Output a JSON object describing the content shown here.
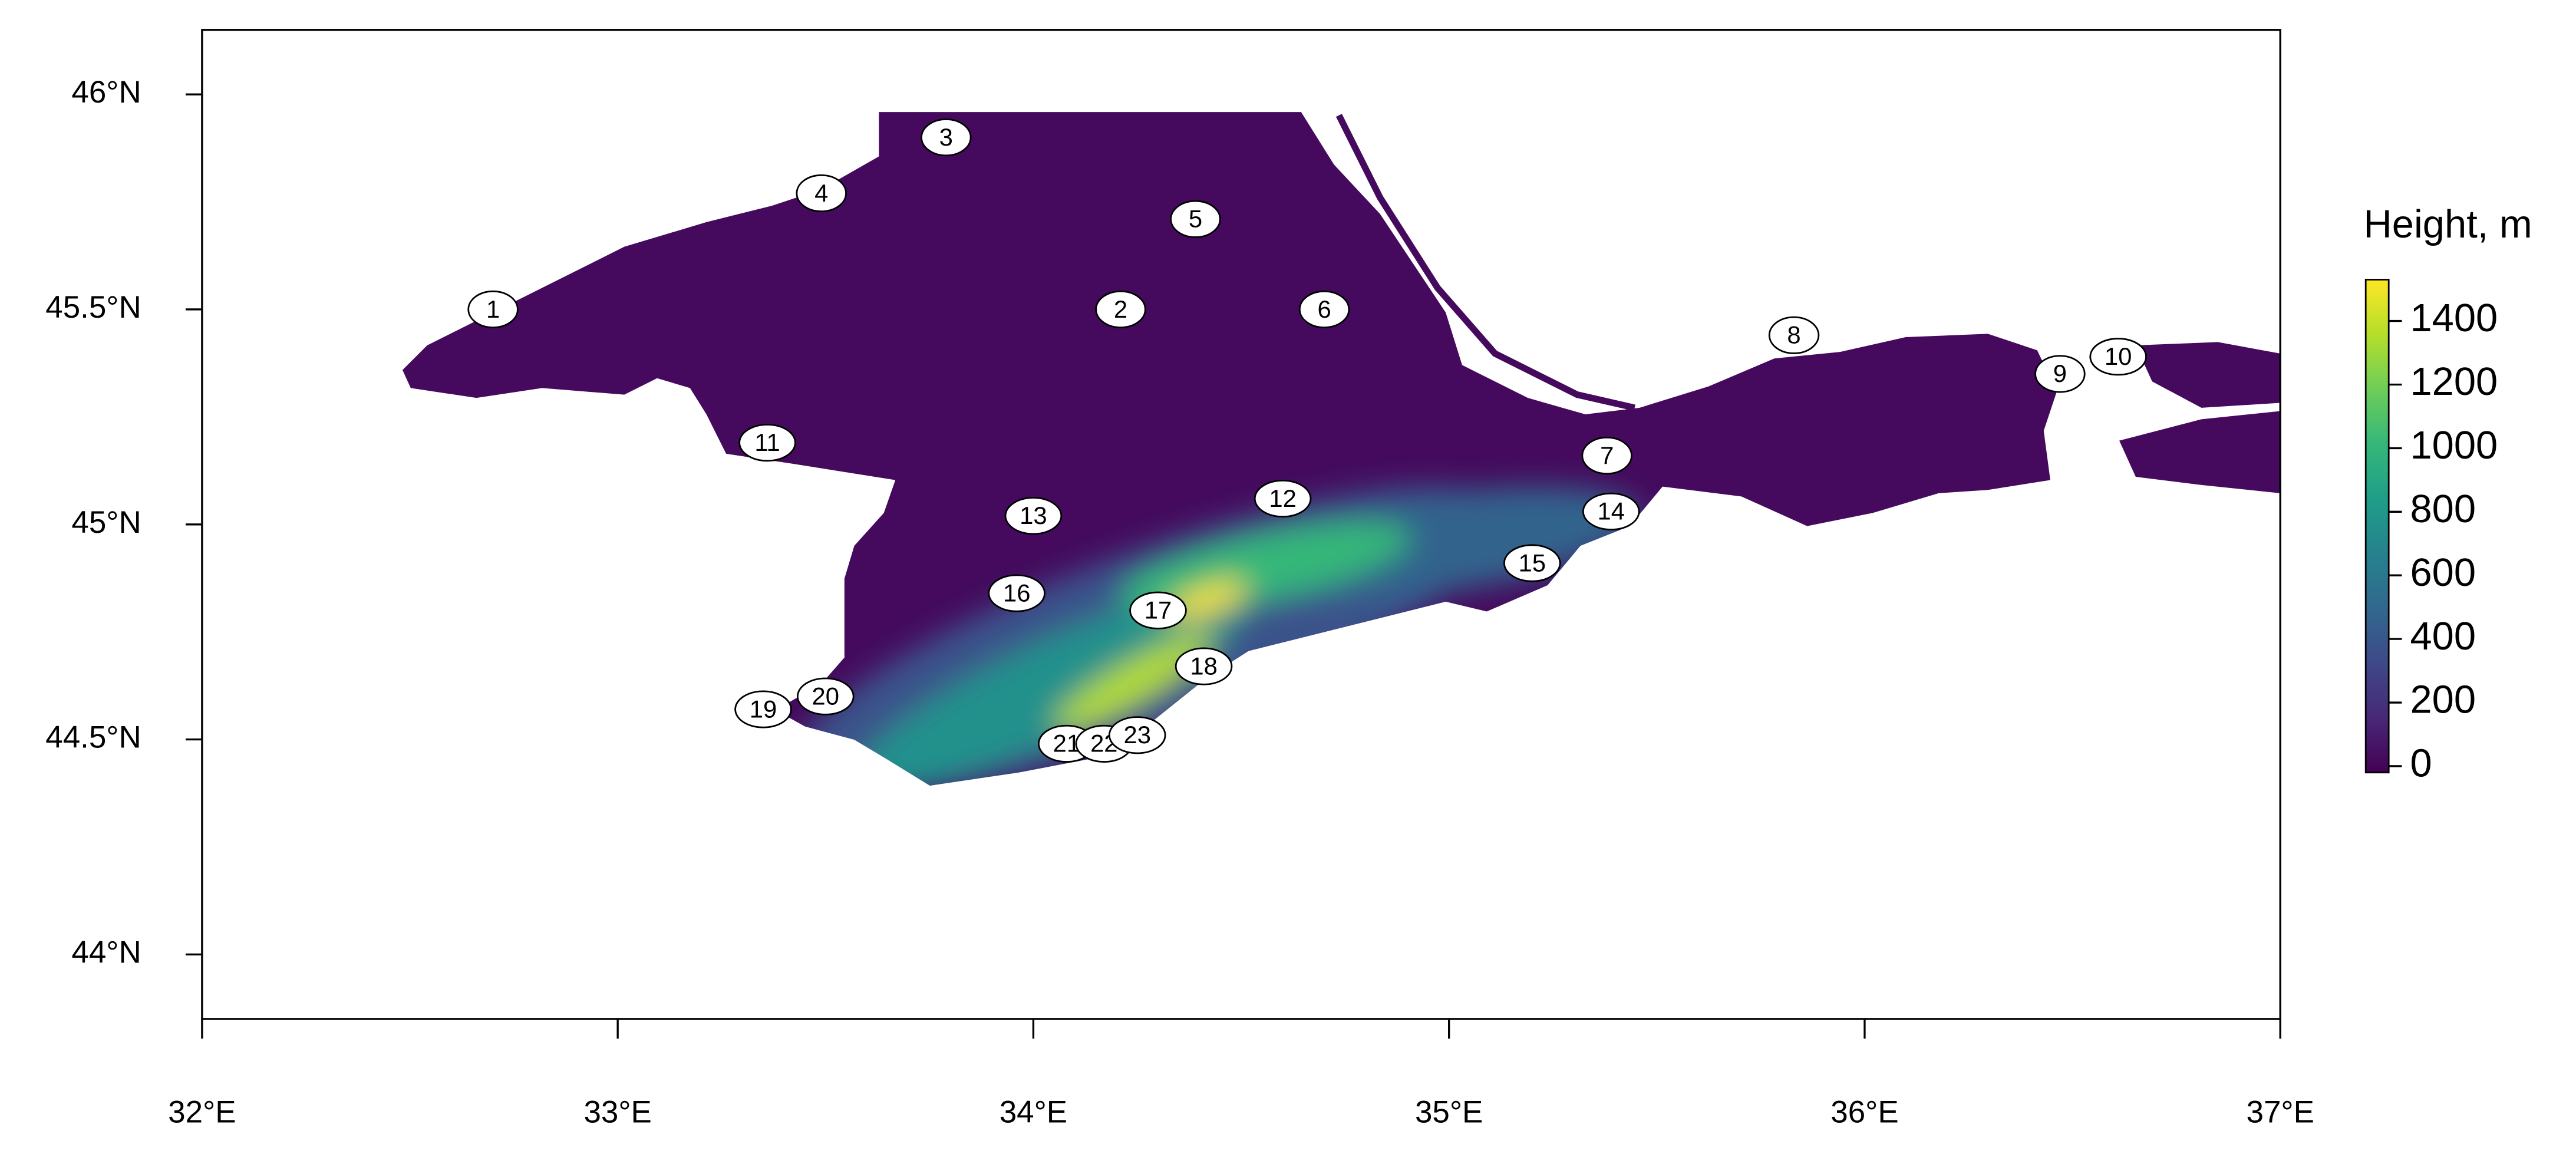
{
  "map": {
    "xlim": [
      32,
      37
    ],
    "ylim": [
      43.85,
      46.15
    ],
    "xticks": [
      {
        "value": 32,
        "label": "32°E"
      },
      {
        "value": 33,
        "label": "33°E"
      },
      {
        "value": 34,
        "label": "34°E"
      },
      {
        "value": 35,
        "label": "35°E"
      },
      {
        "value": 36,
        "label": "36°E"
      },
      {
        "value": 37,
        "label": "37°E"
      }
    ],
    "yticks": [
      {
        "value": 44,
        "label": "44°N"
      },
      {
        "value": 44.5,
        "label": "44.5°N"
      },
      {
        "value": 45,
        "label": "45°N"
      },
      {
        "value": 45.5,
        "label": "45.5°N"
      },
      {
        "value": 46,
        "label": "46°N"
      }
    ],
    "stations": [
      {
        "label": "1",
        "lon": 32.7,
        "lat": 45.5
      },
      {
        "label": "2",
        "lon": 34.21,
        "lat": 45.5
      },
      {
        "label": "3",
        "lon": 33.79,
        "lat": 45.9
      },
      {
        "label": "4",
        "lon": 33.49,
        "lat": 45.77
      },
      {
        "label": "5",
        "lon": 34.39,
        "lat": 45.71
      },
      {
        "label": "6",
        "lon": 34.7,
        "lat": 45.5
      },
      {
        "label": "7",
        "lon": 35.38,
        "lat": 45.16
      },
      {
        "label": "8",
        "lon": 35.83,
        "lat": 45.44
      },
      {
        "label": "9",
        "lon": 36.47,
        "lat": 45.35
      },
      {
        "label": "10",
        "lon": 36.61,
        "lat": 45.39
      },
      {
        "label": "11",
        "lon": 33.36,
        "lat": 45.19
      },
      {
        "label": "12",
        "lon": 34.6,
        "lat": 45.06
      },
      {
        "label": "13",
        "lon": 34.0,
        "lat": 45.02
      },
      {
        "label": "14",
        "lon": 35.39,
        "lat": 45.03
      },
      {
        "label": "15",
        "lon": 35.2,
        "lat": 44.91
      },
      {
        "label": "16",
        "lon": 33.96,
        "lat": 44.84
      },
      {
        "label": "17",
        "lon": 34.3,
        "lat": 44.8
      },
      {
        "label": "18",
        "lon": 34.41,
        "lat": 44.67
      },
      {
        "label": "19",
        "lon": 33.35,
        "lat": 44.57
      },
      {
        "label": "20",
        "lon": 33.5,
        "lat": 44.6
      },
      {
        "label": "21",
        "lon": 34.08,
        "lat": 44.49
      },
      {
        "label": "22",
        "lon": 34.17,
        "lat": 44.49
      },
      {
        "label": "23",
        "lon": 34.25,
        "lat": 44.51
      }
    ],
    "legend": {
      "title": "Height, m",
      "colormap": "viridis",
      "lim": [
        -20,
        1530
      ],
      "ticks": [
        0,
        200,
        400,
        600,
        800,
        1000,
        1200,
        1400
      ]
    }
  }
}
